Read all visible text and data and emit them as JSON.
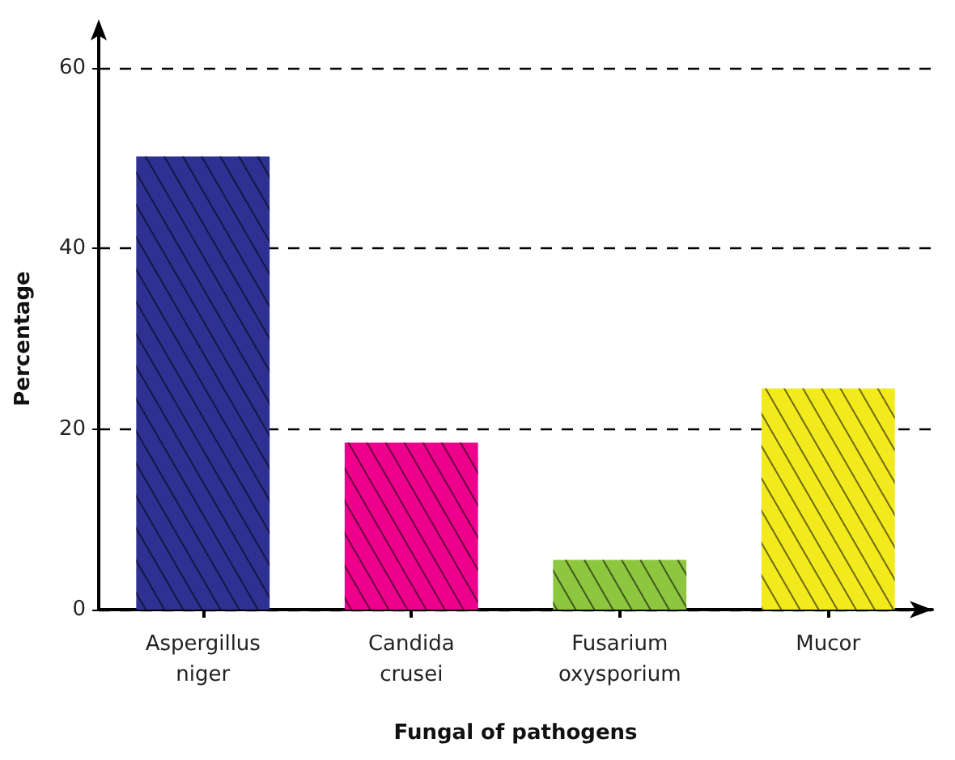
{
  "chart_data": {
    "type": "bar",
    "xlabel": "Fungal of pathogens",
    "ylabel": "Percentage",
    "categories": [
      "Aspergillus\nniger",
      "Candida\ncrusei",
      "Fusarium\noxysporium",
      "Mucor"
    ],
    "values": [
      50.2,
      18.5,
      5.5,
      24.5
    ],
    "colors": [
      "#2e3192",
      "#ec008c",
      "#8dc63f",
      "#f2ea1d"
    ],
    "ylim": [
      0,
      60
    ],
    "yticks": [
      0,
      20,
      40,
      60
    ],
    "grid": "y"
  }
}
